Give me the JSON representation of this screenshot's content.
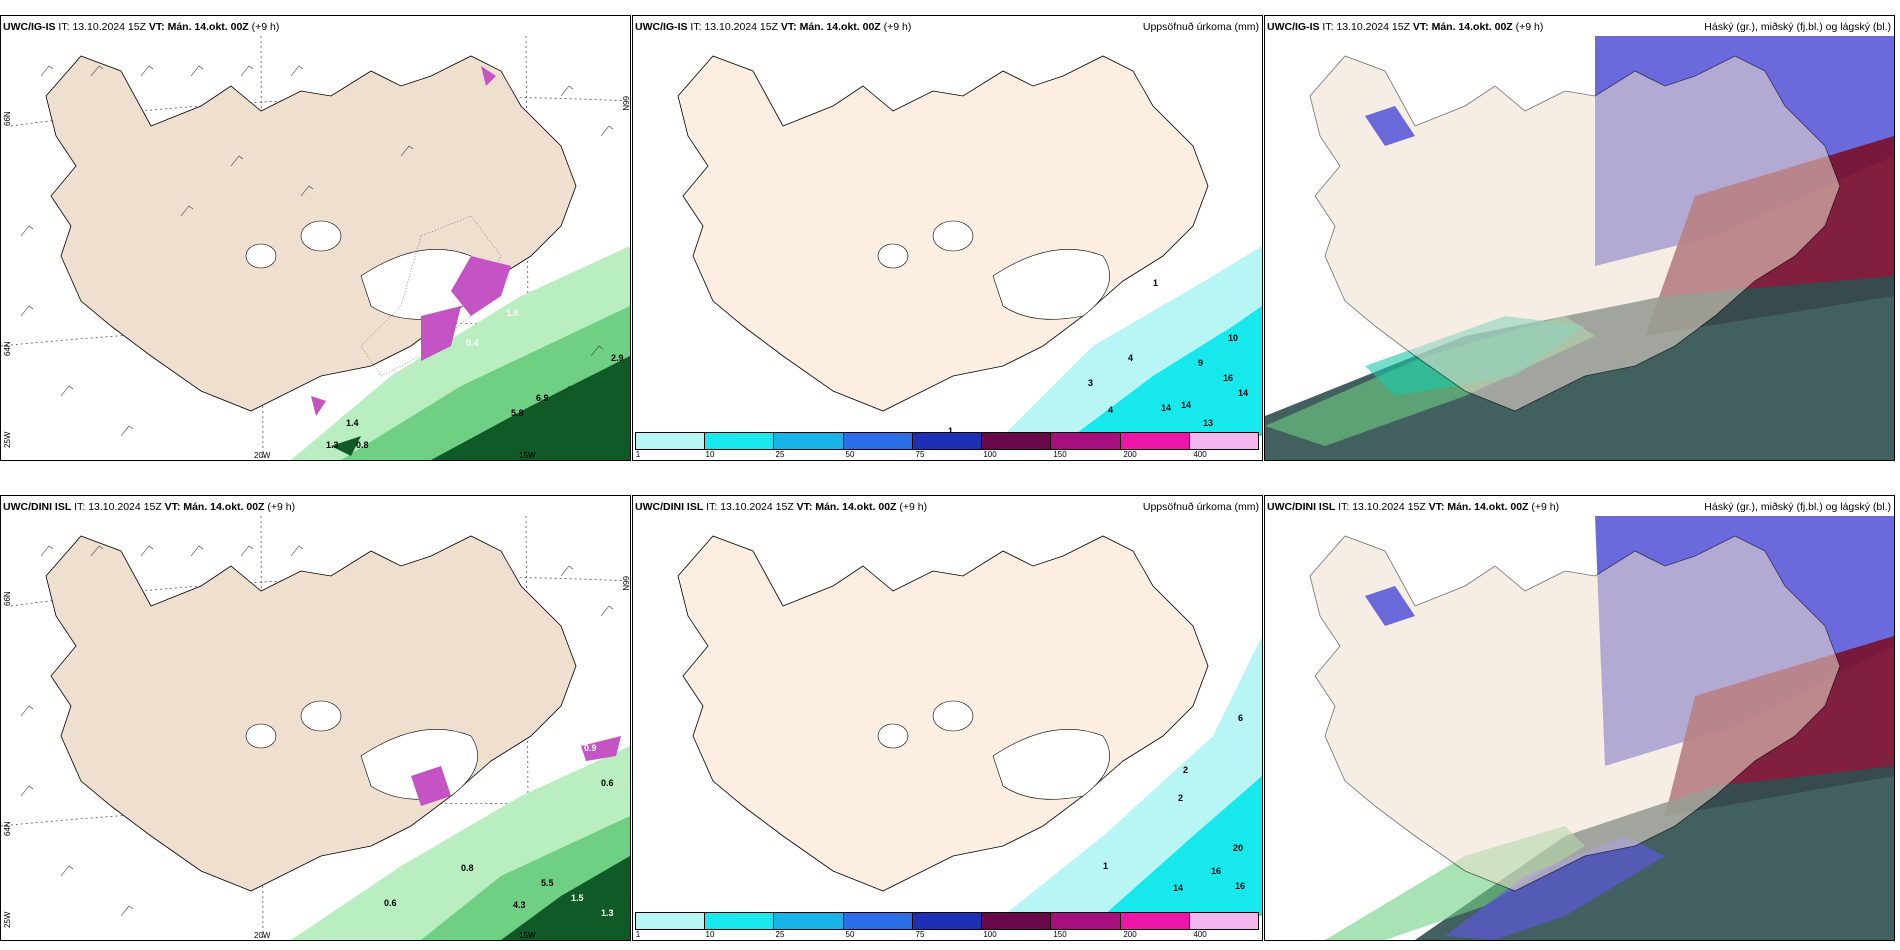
{
  "rows": [
    {
      "model": "UWC/IG-IS",
      "it_label": "IT:",
      "it_value": "13.10.2024 15Z",
      "vt_label": "VT:",
      "vt_value": "Mán. 14.okt. 00Z",
      "lead": "(+9 h)",
      "wind_values": [
        "2.9",
        "6.9",
        "5.8",
        "0.8",
        "1.3",
        "1.4",
        "0.4",
        "1.8"
      ],
      "precip_values": [
        "1",
        "10",
        "9",
        "4",
        "3",
        "16",
        "14",
        "4",
        "14",
        "14",
        "13",
        "1"
      ]
    },
    {
      "model": "UWC/DINI ISL",
      "it_label": "IT:",
      "it_value": "13.10.2024 15Z",
      "vt_label": "VT:",
      "vt_value": "Mán. 14.okt. 00Z",
      "lead": "(+9 h)",
      "wind_values": [
        "0.6",
        "0.8",
        "0.6",
        "4.3",
        "5.5",
        "1.5",
        "1.3",
        "0.9"
      ],
      "precip_values": [
        "6",
        "2",
        "2",
        "20",
        "1",
        "16",
        "16",
        "14"
      ]
    }
  ],
  "panel_titles": {
    "precip": "Uppsöfnuð úrkoma (mm)",
    "clouds": "Háský (gr.), miðský (fj.bl.) og lágský (bl.)"
  },
  "axis_labels": {
    "lon_20": "20W",
    "lon_15": "15W",
    "lat_66": "66N",
    "lat_64": "64N",
    "lat_25": "25W"
  },
  "colorbar": {
    "ticks": [
      "1",
      "10",
      "25",
      "50",
      "75",
      "100",
      "150",
      "200",
      "400"
    ],
    "colors": [
      "#b8f6f6",
      "#17e8ec",
      "#1ab4e8",
      "#2b6fe6",
      "#1f2fb4",
      "#6a0a4a",
      "#a80f7e",
      "#ef15a8",
      "#f4b6ef"
    ]
  },
  "colors": {
    "land": "#efdfcf",
    "land_precip": "#fcefe2",
    "sea": "#ffffff",
    "precip_light": "#b8f6f6",
    "green_light": "#b9efc0",
    "green_mid": "#6fcf83",
    "green_dark": "#0f5a26",
    "purple": "#c454c4",
    "cloud_high": "#7a1434",
    "cloud_mid": "#2f4f4f",
    "cloud_low": "#5a5ad8"
  }
}
